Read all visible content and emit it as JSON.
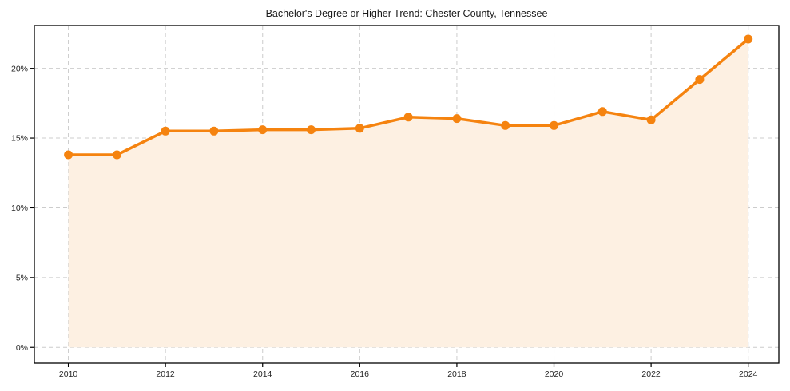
{
  "chart_data": {
    "type": "line",
    "title": "Bachelor's Degree or Higher Trend: Chester County, Tennessee",
    "unit": "%",
    "x": [
      2010,
      2011,
      2012,
      2013,
      2014,
      2015,
      2016,
      2017,
      2018,
      2019,
      2020,
      2021,
      2022,
      2023,
      2024
    ],
    "values": [
      13.8,
      13.8,
      15.5,
      15.5,
      15.6,
      15.6,
      15.7,
      16.5,
      16.4,
      15.9,
      15.9,
      16.9,
      16.3,
      19.2,
      22.1
    ],
    "xlabel": "",
    "ylabel": "",
    "x_ticks": [
      2010,
      2012,
      2014,
      2016,
      2018,
      2020,
      2022,
      2024
    ],
    "y_ticks": [
      0,
      5,
      10,
      15,
      20
    ],
    "y_tick_labels": [
      "0%",
      "5%",
      "10%",
      "15%",
      "20%"
    ],
    "xlim": [
      2009.3,
      2024.63
    ],
    "ylim": [
      -1.13,
      23.07
    ],
    "grid": true,
    "grid_style": "dashed",
    "legend": "none",
    "area_fill": true,
    "area_baseline": 0,
    "marker": {
      "shape": "circle",
      "radius": 5.5
    },
    "line_width": 3.5,
    "colors": {
      "line": "#f5830f",
      "marker": "#f5830f",
      "fill": "#fdf0e2",
      "grid": "#cccccc",
      "axis": "#000000",
      "tick_text": "#262626",
      "title_text": "#1a1a1a",
      "background": "#ffffff"
    }
  }
}
